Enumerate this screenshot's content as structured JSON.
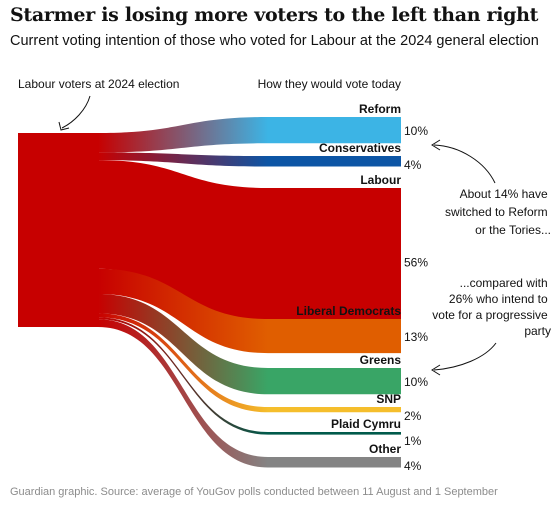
{
  "title": "Starmer is losing more voters to the left than right",
  "subtitle": "Current voting intention of those who voted for Labour at the 2024 general election",
  "source": "Guardian graphic. Source: average of YouGov polls conducted between 11 August and 1 September",
  "chart_data": {
    "type": "sankey",
    "source_label": "Labour voters at 2024 election",
    "target_heading": "How they would vote today",
    "units": "%",
    "source_color": "#c70000",
    "flows": [
      {
        "name": "Reform",
        "value": 10,
        "label": "10%",
        "color": "#3cb4e5"
      },
      {
        "name": "Conservatives",
        "value": 4,
        "label": "4%",
        "color": "#0c55a5"
      },
      {
        "name": "Labour",
        "value": 56,
        "label": "56%",
        "color": "#c70000"
      },
      {
        "name": "Liberal Democrats",
        "value": 13,
        "label": "13%",
        "color": "#e05e00"
      },
      {
        "name": "Greens",
        "value": 10,
        "label": "10%",
        "color": "#39a566"
      },
      {
        "name": "SNP",
        "value": 2,
        "label": "2%",
        "color": "#f5be2c"
      },
      {
        "name": "Plaid Cymru",
        "value": 1,
        "label": "1%",
        "color": "#005a4b"
      },
      {
        "name": "Other",
        "value": 4,
        "label": "4%",
        "color": "#848484"
      }
    ],
    "annotations": [
      {
        "lines": [
          "About 14% have",
          "switched to Reform",
          "or the Tories..."
        ]
      },
      {
        "lines": [
          "...compared with",
          "26% who intend to",
          "vote for a progressive",
          "party"
        ]
      }
    ]
  }
}
